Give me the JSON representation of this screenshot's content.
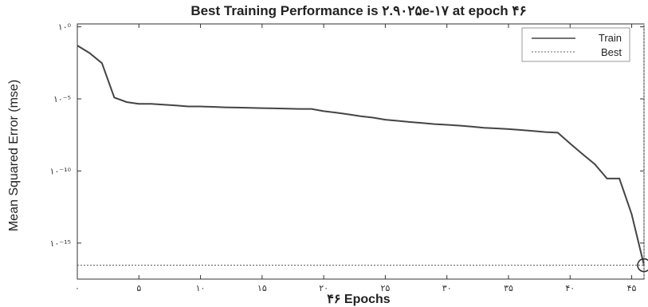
{
  "chart_data": {
    "type": "line",
    "title": "Best Training Performance is ۲.۹۰۲۵e-۱۷ at epoch ۴۶",
    "xlabel": "۴۶ Epochs",
    "ylabel": "Mean Squared Error (mse)",
    "y_scale": "log",
    "xlim": [
      0,
      46
    ],
    "ylim_log10": [
      -17.5,
      0.2
    ],
    "x_ticks": [
      {
        "value": 0,
        "label": "۰"
      },
      {
        "value": 5,
        "label": "۵"
      },
      {
        "value": 10,
        "label": "۱۰"
      },
      {
        "value": 15,
        "label": "۱۵"
      },
      {
        "value": 20,
        "label": "۲۰"
      },
      {
        "value": 25,
        "label": "۲۵"
      },
      {
        "value": 30,
        "label": "۳۰"
      },
      {
        "value": 35,
        "label": "۳۵"
      },
      {
        "value": 40,
        "label": "۴۰"
      },
      {
        "value": 45,
        "label": "۴۵"
      }
    ],
    "y_ticks": [
      {
        "value": 1,
        "label": "۱۰⁰"
      },
      {
        "value": 1e-05,
        "label": "۱۰⁻⁵"
      },
      {
        "value": 1e-10,
        "label": "۱۰⁻¹⁰"
      },
      {
        "value": 1e-15,
        "label": "۱۰⁻¹⁵"
      }
    ],
    "legend": {
      "placement": "top-right",
      "entries": [
        "Train",
        "Best"
      ]
    },
    "series": [
      {
        "name": "Train",
        "style": "solid",
        "color": "#444444",
        "x": [
          0,
          1,
          2,
          3,
          4,
          5,
          6,
          7,
          8,
          9,
          10,
          11,
          12,
          13,
          14,
          15,
          16,
          17,
          18,
          19,
          20,
          21,
          22,
          23,
          24,
          25,
          26,
          27,
          28,
          29,
          30,
          31,
          32,
          33,
          34,
          35,
          36,
          37,
          38,
          39,
          40,
          41,
          42,
          43,
          44,
          45,
          46
        ],
        "y": [
          0.05,
          0.015,
          0.003,
          1.25e-05,
          6e-06,
          4.5e-06,
          4.5e-06,
          4e-06,
          3.5e-06,
          3e-06,
          3e-06,
          2.8e-06,
          2.6e-06,
          2.5e-06,
          2.4e-06,
          2.3e-06,
          2.2e-06,
          2.1e-06,
          2e-06,
          2e-06,
          1.4e-06,
          1.1e-06,
          8.5e-07,
          6.2e-07,
          5e-07,
          3.6e-07,
          3e-07,
          2.5e-07,
          2.1e-07,
          1.8e-07,
          1.6e-07,
          1.4e-07,
          1.2e-07,
          1e-07,
          9e-08,
          8e-08,
          7e-08,
          6e-08,
          5e-08,
          4.5e-08,
          8e-09,
          1.5e-09,
          3e-10,
          3e-11,
          3e-11,
          1e-13,
          2.9025e-17
        ]
      },
      {
        "name": "Best",
        "style": "dotted",
        "color": "#555555",
        "y_value": 2.9025e-17,
        "x_value": 46
      }
    ],
    "best_marker": {
      "epoch": 46,
      "value": 2.9025e-17
    }
  }
}
